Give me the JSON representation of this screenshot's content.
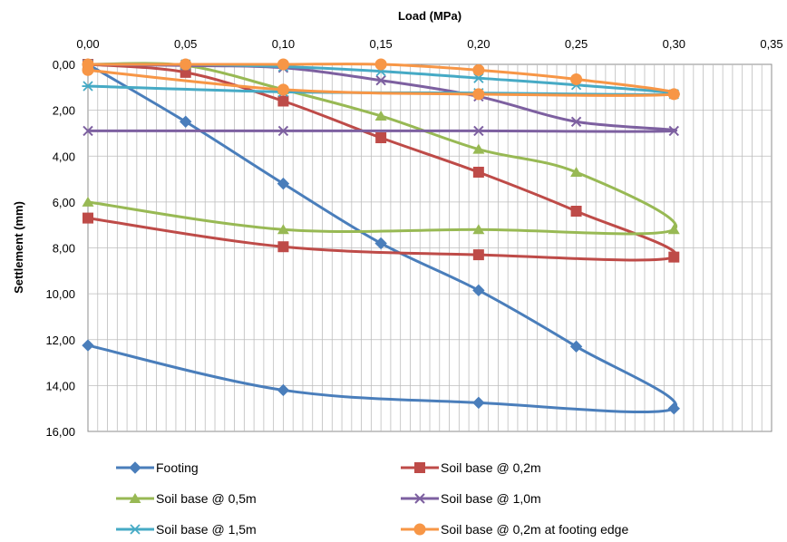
{
  "chart_data": {
    "type": "line",
    "title": "",
    "xlabel": "Load (MPa)",
    "ylabel": "Settlement (mm)",
    "x_axis_position": "top",
    "y_axis_inverted": true,
    "xlim": [
      0,
      0.35
    ],
    "ylim": [
      0,
      16
    ],
    "xticks": [
      "0,00",
      "0,05",
      "0,10",
      "0,15",
      "0,20",
      "0,25",
      "0,30",
      "0,35"
    ],
    "yticks": [
      "0,00",
      "2,00",
      "4,00",
      "6,00",
      "8,00",
      "10,00",
      "12,00",
      "14,00",
      "16,00"
    ],
    "grid": true,
    "legend_position": "bottom",
    "series": [
      {
        "name": "Footing",
        "color": "#4a7ebb",
        "marker": "diamond",
        "points": [
          [
            0,
            0
          ],
          [
            0.05,
            2.5
          ],
          [
            0.1,
            5.2
          ],
          [
            0.15,
            7.8
          ],
          [
            0.2,
            9.85
          ],
          [
            0.25,
            12.3
          ],
          [
            0.3,
            15.0
          ],
          [
            0.2,
            14.75
          ],
          [
            0.1,
            14.2
          ],
          [
            0,
            12.25
          ]
        ]
      },
      {
        "name": "Soil base @ 0,2m",
        "color": "#be4b48",
        "marker": "square",
        "points": [
          [
            0,
            0
          ],
          [
            0.05,
            0.35
          ],
          [
            0.1,
            1.6
          ],
          [
            0.15,
            3.2
          ],
          [
            0.2,
            4.7
          ],
          [
            0.25,
            6.4
          ],
          [
            0.3,
            8.4
          ],
          [
            0.2,
            8.3
          ],
          [
            0.1,
            7.95
          ],
          [
            0,
            6.7
          ]
        ]
      },
      {
        "name": "Soil base  @ 0,5m",
        "color": "#98b954",
        "marker": "triangle",
        "points": [
          [
            0,
            0
          ],
          [
            0.05,
            0.05
          ],
          [
            0.1,
            1.1
          ],
          [
            0.15,
            2.25
          ],
          [
            0.2,
            3.7
          ],
          [
            0.25,
            4.7
          ],
          [
            0.3,
            7.2
          ],
          [
            0.2,
            7.2
          ],
          [
            0.1,
            7.2
          ],
          [
            0,
            6.0
          ]
        ]
      },
      {
        "name": "Soil base  @ 1,0m",
        "color": "#7d60a0",
        "marker": "x",
        "points": [
          [
            0,
            0
          ],
          [
            0.05,
            0.05
          ],
          [
            0.1,
            0.15
          ],
          [
            0.15,
            0.7
          ],
          [
            0.2,
            1.4
          ],
          [
            0.25,
            2.5
          ],
          [
            0.3,
            2.9
          ],
          [
            0.2,
            2.9
          ],
          [
            0.1,
            2.9
          ],
          [
            0,
            2.9
          ]
        ]
      },
      {
        "name": "Soil base  @ 1,5m",
        "color": "#46aac5",
        "marker": "star",
        "points": [
          [
            0,
            0
          ],
          [
            0.05,
            0.0
          ],
          [
            0.1,
            0.1
          ],
          [
            0.15,
            0.3
          ],
          [
            0.2,
            0.6
          ],
          [
            0.25,
            0.9
          ],
          [
            0.3,
            1.3
          ],
          [
            0.2,
            1.25
          ],
          [
            0.1,
            1.2
          ],
          [
            0,
            0.95
          ]
        ]
      },
      {
        "name": "Soil base  @ 0,2m at footing edge",
        "color": "#f79646",
        "marker": "circle",
        "points": [
          [
            0,
            0
          ],
          [
            0.05,
            0.0
          ],
          [
            0.1,
            0.0
          ],
          [
            0.15,
            0.0
          ],
          [
            0.2,
            0.25
          ],
          [
            0.25,
            0.65
          ],
          [
            0.3,
            1.3
          ],
          [
            0.2,
            1.3
          ],
          [
            0.1,
            1.1
          ],
          [
            0,
            0.25
          ]
        ]
      }
    ]
  }
}
